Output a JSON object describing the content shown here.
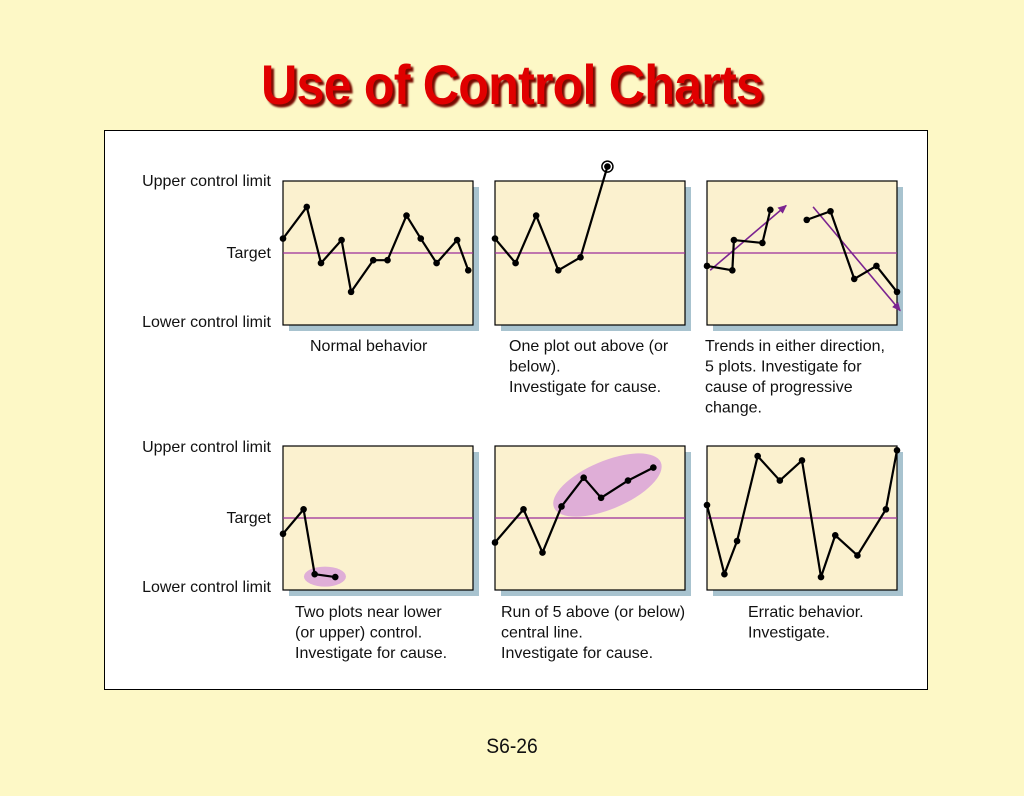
{
  "title": "Use of Control Charts",
  "page_number": "S6-26",
  "axis_labels": {
    "ucl": "Upper control limit",
    "target": "Target",
    "lcl": "Lower control limit"
  },
  "colors": {
    "title": "#e00000",
    "plot_bg": "#fbf1cf",
    "shadow": "#a8c3cf",
    "target_line": "#9b2c9b",
    "highlight": "#d9a2d8",
    "arrow": "#7b2490"
  },
  "panels": [
    {
      "id": "normal",
      "caption": [
        "Normal behavior"
      ],
      "points": [
        [
          0,
          0.6
        ],
        [
          0.15,
          0.82
        ],
        [
          0.24,
          0.43
        ],
        [
          0.37,
          0.59
        ],
        [
          0.43,
          0.23
        ],
        [
          0.57,
          0.45
        ],
        [
          0.66,
          0.45
        ],
        [
          0.78,
          0.76
        ],
        [
          0.87,
          0.6
        ],
        [
          0.97,
          0.43
        ],
        [
          1.1,
          0.59
        ],
        [
          1.17,
          0.38
        ]
      ]
    },
    {
      "id": "one-out",
      "caption": [
        "One plot out above (or",
        "below).",
        "Investigate for cause."
      ],
      "points": [
        [
          0,
          0.6
        ],
        [
          0.13,
          0.43
        ],
        [
          0.26,
          0.76
        ],
        [
          0.4,
          0.38
        ],
        [
          0.54,
          0.47
        ],
        [
          0.71,
          1.1
        ]
      ]
    },
    {
      "id": "trends",
      "caption": [
        "Trends in either direction,",
        "5 plots. Investigate for",
        "cause of progressive",
        "change."
      ],
      "points_a": [
        [
          0,
          0.41
        ],
        [
          0.16,
          0.38
        ],
        [
          0.17,
          0.59
        ],
        [
          0.35,
          0.57
        ],
        [
          0.4,
          0.8
        ]
      ],
      "points_b": [
        [
          0.63,
          0.73
        ],
        [
          0.78,
          0.79
        ],
        [
          0.93,
          0.32
        ],
        [
          1.07,
          0.41
        ],
        [
          1.2,
          0.23
        ]
      ]
    },
    {
      "id": "near-lower",
      "caption": [
        "Two plots near lower",
        "(or upper) control.",
        "Investigate for cause."
      ],
      "points": [
        [
          0,
          0.39
        ],
        [
          0.13,
          0.56
        ],
        [
          0.2,
          0.11
        ],
        [
          0.33,
          0.09
        ]
      ]
    },
    {
      "id": "run-of-5",
      "caption": [
        "Run of 5 above (or below)",
        "central line.",
        "Investigate for cause."
      ],
      "points": [
        [
          0,
          0.33
        ],
        [
          0.18,
          0.56
        ],
        [
          0.3,
          0.26
        ],
        [
          0.42,
          0.58
        ],
        [
          0.56,
          0.78
        ],
        [
          0.67,
          0.64
        ],
        [
          0.84,
          0.76
        ],
        [
          1.0,
          0.85
        ]
      ]
    },
    {
      "id": "erratic",
      "caption": [
        "Erratic behavior.",
        "Investigate."
      ],
      "points": [
        [
          0,
          0.59
        ],
        [
          0.11,
          0.11
        ],
        [
          0.19,
          0.34
        ],
        [
          0.32,
          0.93
        ],
        [
          0.46,
          0.76
        ],
        [
          0.6,
          0.9
        ],
        [
          0.72,
          0.09
        ],
        [
          0.81,
          0.38
        ],
        [
          0.95,
          0.24
        ],
        [
          1.13,
          0.56
        ],
        [
          1.2,
          0.97
        ]
      ]
    }
  ]
}
